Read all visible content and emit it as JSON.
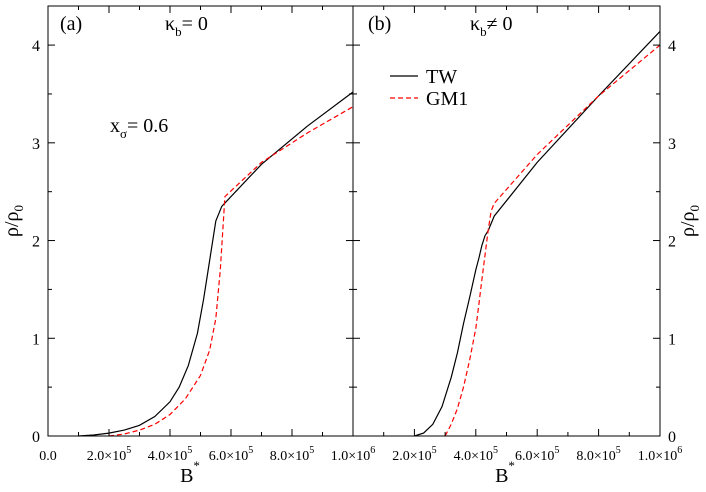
{
  "chart_data": {
    "type": "line",
    "ylabel": "ρ/ρ",
    "ylabel_sub": "0",
    "xlabel": "B",
    "xlabel_sup": "*",
    "ylim": [
      0,
      4.4
    ],
    "y_ticks": [
      0,
      1,
      2,
      3,
      4
    ],
    "y_tick_labels": [
      "0",
      "1",
      "2",
      "3",
      "4"
    ],
    "series_styles": {
      "TW": {
        "color": "#000000",
        "dash": "solid"
      },
      "GM1": {
        "color": "#ff0000",
        "dash": "dashed"
      }
    },
    "panels": [
      {
        "id": "a",
        "label": "(a)",
        "condition": "κ",
        "condition_sub": "b",
        "condition_rhs": "= 0",
        "annotation": "x",
        "annotation_sub": "σ",
        "annotation_rhs": "= 0.6",
        "xlim": [
          0,
          1000000
        ],
        "x_ticks": [
          0,
          200000,
          400000,
          600000,
          800000,
          1000000
        ],
        "x_tick_labels": [
          {
            "base": "0.0",
            "exp": ""
          },
          {
            "base": "2.0×10",
            "exp": "5"
          },
          {
            "base": "4.0×10",
            "exp": "5"
          },
          {
            "base": "6.0×10",
            "exp": "5"
          },
          {
            "base": "8.0×10",
            "exp": "5"
          },
          {
            "base": "1.0×10",
            "exp": "6"
          }
        ],
        "series": [
          {
            "name": "TW",
            "x": [
              100000,
              150000,
              200000,
              250000,
              300000,
              350000,
              400000,
              430000,
              460000,
              490000,
              510000,
              530000,
              550000,
              570000,
              700000,
              850000,
              1000000
            ],
            "y": [
              0.0,
              0.01,
              0.03,
              0.06,
              0.11,
              0.2,
              0.35,
              0.5,
              0.72,
              1.05,
              1.4,
              1.8,
              2.2,
              2.35,
              2.78,
              3.17,
              3.52
            ]
          },
          {
            "name": "GM1",
            "x": [
              200000,
              250000,
              300000,
              350000,
              400000,
              450000,
              500000,
              530000,
              550000,
              565000,
              575000,
              580000,
              700000,
              850000,
              1000000
            ],
            "y": [
              0.0,
              0.02,
              0.06,
              0.12,
              0.22,
              0.38,
              0.62,
              0.88,
              1.2,
              1.7,
              2.2,
              2.45,
              2.8,
              3.1,
              3.37
            ]
          }
        ]
      },
      {
        "id": "b",
        "label": "(b)",
        "condition": "κ",
        "condition_sub": "b",
        "condition_rhs": "≠ 0",
        "xlim": [
          0,
          1000000
        ],
        "x_ticks": [
          200000,
          400000,
          600000,
          800000,
          1000000
        ],
        "x_tick_labels": [
          {
            "base": "2.0×10",
            "exp": "5"
          },
          {
            "base": "4.0×10",
            "exp": "5"
          },
          {
            "base": "6.0×10",
            "exp": "5"
          },
          {
            "base": "8.0×10",
            "exp": "5"
          },
          {
            "base": "1.0×10",
            "exp": "6"
          }
        ],
        "legend": {
          "position": "top-center",
          "entries": [
            "TW",
            "GM1"
          ]
        },
        "series": [
          {
            "name": "TW",
            "x": [
              200000,
              230000,
              260000,
              290000,
              320000,
              340000,
              360000,
              380000,
              400000,
              410000,
              420000,
              430000,
              440000,
              460000,
              600000,
              800000,
              1000000
            ],
            "y": [
              0.0,
              0.03,
              0.12,
              0.3,
              0.6,
              0.85,
              1.15,
              1.42,
              1.7,
              1.82,
              1.95,
              2.05,
              2.1,
              2.25,
              2.8,
              3.48,
              4.14
            ]
          },
          {
            "name": "GM1",
            "x": [
              300000,
              320000,
              340000,
              360000,
              380000,
              400000,
              410000,
              420000,
              430000,
              440000,
              450000,
              460000,
              600000,
              800000,
              1000000
            ],
            "y": [
              0.0,
              0.12,
              0.28,
              0.5,
              0.78,
              1.1,
              1.35,
              1.6,
              1.85,
              2.1,
              2.3,
              2.38,
              2.88,
              3.48,
              4.0
            ]
          }
        ]
      }
    ]
  }
}
